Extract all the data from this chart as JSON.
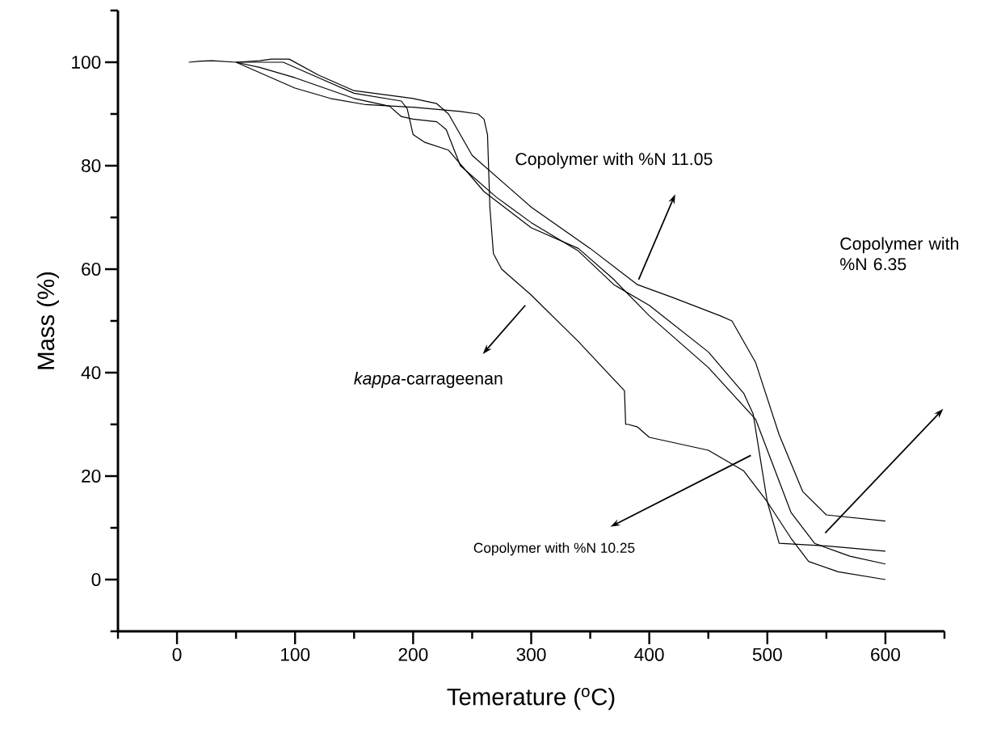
{
  "chart_data": {
    "type": "line",
    "xlabel": "Temerature ($^{o}$C)",
    "ylabel": "Mass (%)",
    "xlim": [
      -50,
      650
    ],
    "ylim": [
      -10,
      110
    ],
    "xticks": [
      0,
      100,
      200,
      300,
      400,
      500,
      600
    ],
    "yticks": [
      0,
      20,
      40,
      60,
      80,
      100
    ],
    "grid": false,
    "marker": "none",
    "line_style": "solid",
    "series": [
      {
        "color": "#000000",
        "x": [
          10,
          20,
          30,
          50,
          80,
          100,
          130,
          160,
          200,
          240,
          255,
          260,
          263,
          265,
          268,
          275,
          300,
          340,
          379,
          380,
          382,
          390,
          400,
          450,
          480,
          500,
          520,
          535,
          560,
          600
        ],
        "values": [
          100,
          100.2,
          100.3,
          100,
          97,
          95,
          93,
          91.8,
          91.3,
          90.5,
          90,
          89,
          86,
          72,
          63,
          60,
          55,
          46,
          36.5,
          30,
          30,
          29.5,
          27.5,
          25,
          21,
          15,
          8,
          3.5,
          1.5,
          0
        ]
      },
      {
        "color": "#000000",
        "x": [
          50,
          70,
          80,
          95,
          120,
          150,
          200,
          220,
          230,
          250,
          280,
          300,
          350,
          390,
          420,
          460,
          470,
          490,
          510,
          530,
          550,
          600
        ],
        "values": [
          100,
          100.3,
          100.6,
          100.6,
          97.5,
          94.5,
          93,
          92,
          90,
          82,
          76,
          72,
          64,
          57,
          54.5,
          51,
          50,
          42,
          28,
          17,
          12.5,
          11.3
        ]
      },
      {
        "color": "#000000",
        "x": [
          50,
          90,
          120,
          150,
          190,
          195,
          200,
          210,
          230,
          260,
          300,
          340,
          370,
          400,
          450,
          490,
          505,
          520,
          540,
          570,
          600
        ],
        "values": [
          100,
          100,
          97,
          94,
          92.5,
          91,
          86,
          84.5,
          83,
          75,
          68,
          64,
          58,
          51,
          41,
          31,
          22,
          13,
          7,
          4.5,
          3
        ]
      },
      {
        "color": "#000000",
        "x": [
          50,
          70,
          100,
          150,
          180,
          190,
          200,
          220,
          228,
          240,
          270,
          300,
          340,
          370,
          400,
          450,
          480,
          488,
          495,
          500,
          510,
          550,
          600
        ],
        "values": [
          100,
          99,
          97,
          93,
          91.5,
          89.5,
          89,
          88.5,
          87,
          80,
          74,
          69,
          63.5,
          57,
          53,
          44,
          36,
          32,
          22,
          15,
          7,
          6.5,
          5.5
        ]
      }
    ],
    "annotations": [
      "Copolymer with %N 11.05",
      "Copolymer with %N 6.35",
      "*kappa*-carrageenan",
      "Copolymer with %N 10.25"
    ]
  }
}
